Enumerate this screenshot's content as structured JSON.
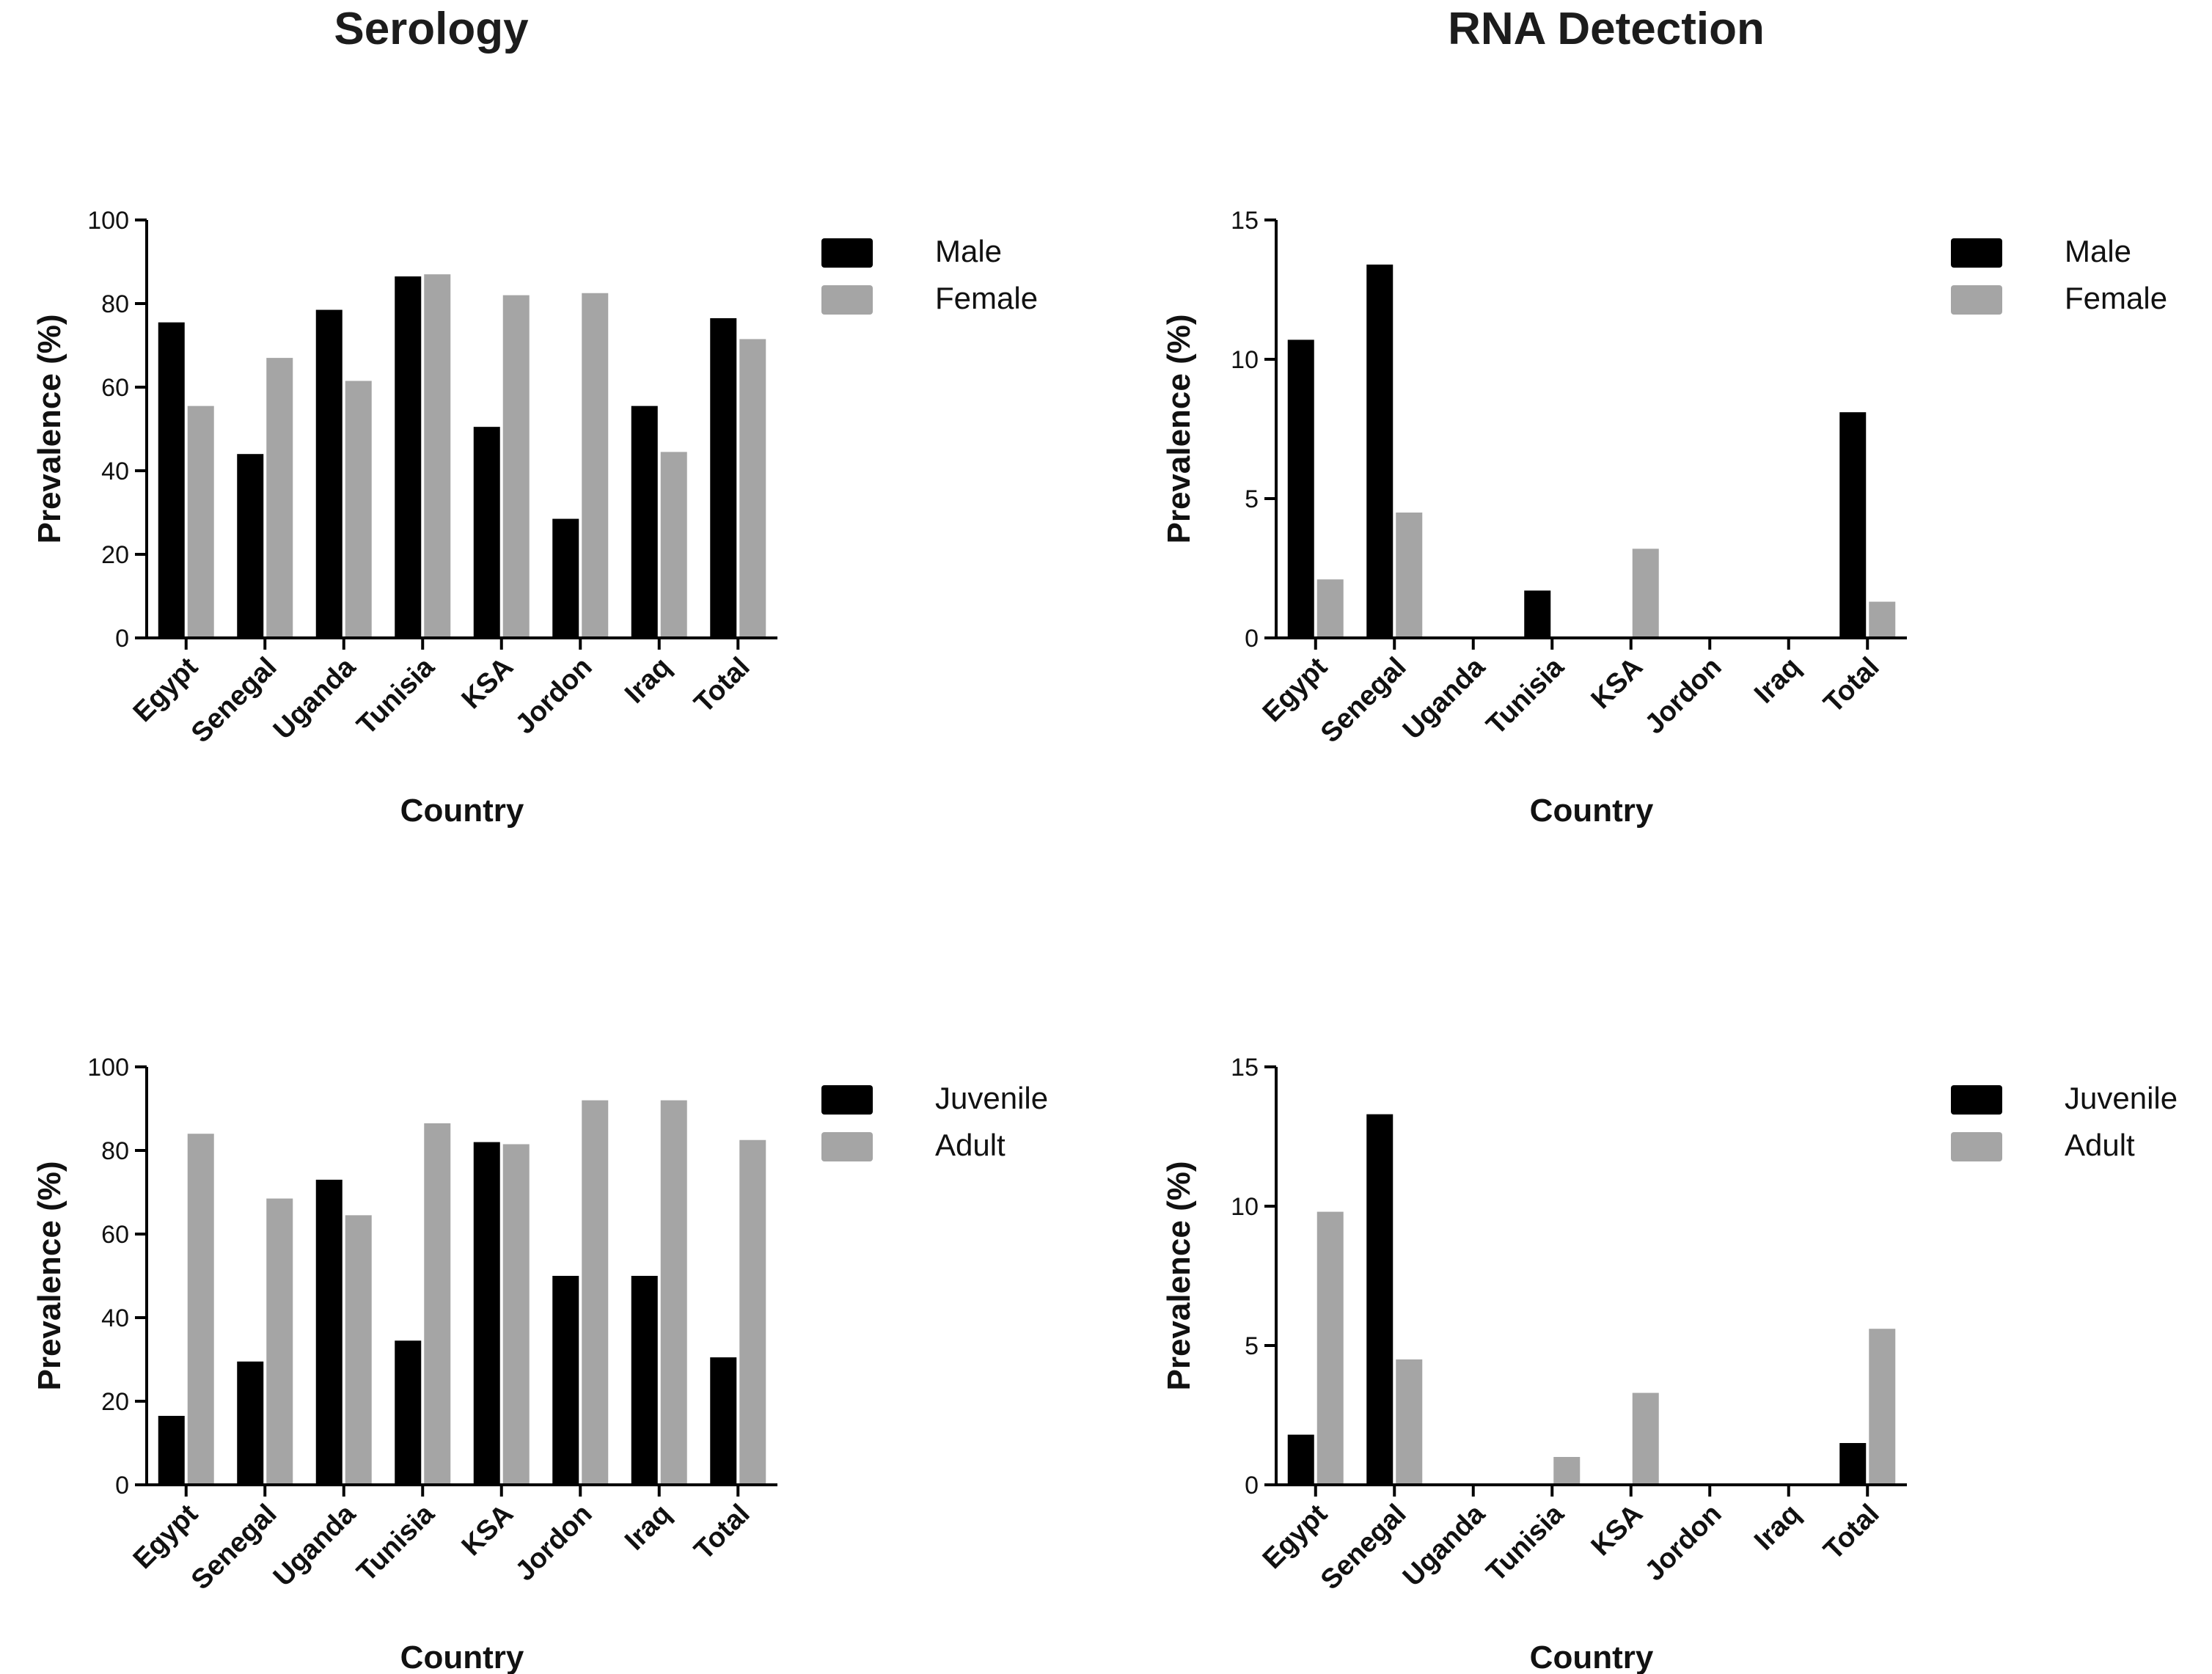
{
  "titles": {
    "left": "Serology",
    "right": "RNA Detection"
  },
  "colors": {
    "series_a": "#000000",
    "series_b": "#a5a5a5",
    "axis": "#000000"
  },
  "chart_data": [
    {
      "type": "bar",
      "title": "Serology",
      "categories": [
        "Egypt",
        "Senegal",
        "Uganda",
        "Tunisia",
        "KSA",
        "Jordon",
        "Iraq",
        "Total"
      ],
      "series": [
        {
          "name": "Male",
          "values": [
            75.5,
            44,
            78.5,
            86.5,
            50.5,
            28.5,
            55.5,
            76.5
          ]
        },
        {
          "name": "Female",
          "values": [
            55.5,
            67,
            61.5,
            87,
            82,
            82.5,
            44.5,
            71.5
          ]
        }
      ],
      "xlabel": "Country",
      "ylabel": "Prevalence (%)",
      "ylim": [
        0,
        100
      ],
      "yticks": [
        0,
        20,
        40,
        60,
        80,
        100
      ],
      "legend": "right"
    },
    {
      "type": "bar",
      "title": "RNA Detection",
      "categories": [
        "Egypt",
        "Senegal",
        "Uganda",
        "Tunisia",
        "KSA",
        "Jordon",
        "Iraq",
        "Total"
      ],
      "series": [
        {
          "name": "Male",
          "values": [
            10.7,
            13.4,
            0,
            1.7,
            0,
            0,
            0,
            8.1
          ]
        },
        {
          "name": "Female",
          "values": [
            2.1,
            4.5,
            0,
            0,
            3.2,
            0,
            0,
            1.3
          ]
        }
      ],
      "xlabel": "Country",
      "ylabel": "Prevalence (%)",
      "ylim": [
        0,
        15
      ],
      "yticks": [
        0,
        5,
        10,
        15
      ],
      "legend": "right"
    },
    {
      "type": "bar",
      "title": "Serology",
      "categories": [
        "Egypt",
        "Senegal",
        "Uganda",
        "Tunisia",
        "KSA",
        "Jordon",
        "Iraq",
        "Total"
      ],
      "series": [
        {
          "name": "Juvenile",
          "values": [
            16.5,
            29.5,
            73,
            34.5,
            82,
            50,
            50,
            30.5
          ]
        },
        {
          "name": "Adult",
          "values": [
            84,
            68.5,
            64.5,
            86.5,
            81.5,
            92,
            92,
            82.5
          ]
        }
      ],
      "xlabel": "Country",
      "ylabel": "Prevalence (%)",
      "ylim": [
        0,
        100
      ],
      "yticks": [
        0,
        20,
        40,
        60,
        80,
        100
      ],
      "legend": "right"
    },
    {
      "type": "bar",
      "title": "RNA Detection",
      "categories": [
        "Egypt",
        "Senegal",
        "Uganda",
        "Tunisia",
        "KSA",
        "Jordon",
        "Iraq",
        "Total"
      ],
      "series": [
        {
          "name": "Juvenile",
          "values": [
            1.8,
            13.3,
            0,
            0,
            0,
            0,
            0,
            1.5
          ]
        },
        {
          "name": "Adult",
          "values": [
            9.8,
            4.5,
            0,
            1.0,
            3.3,
            0,
            0,
            5.6
          ]
        }
      ],
      "xlabel": "Country",
      "ylabel": "Prevalence (%)",
      "ylim": [
        0,
        15
      ],
      "yticks": [
        0,
        5,
        10,
        15
      ],
      "legend": "right"
    }
  ]
}
